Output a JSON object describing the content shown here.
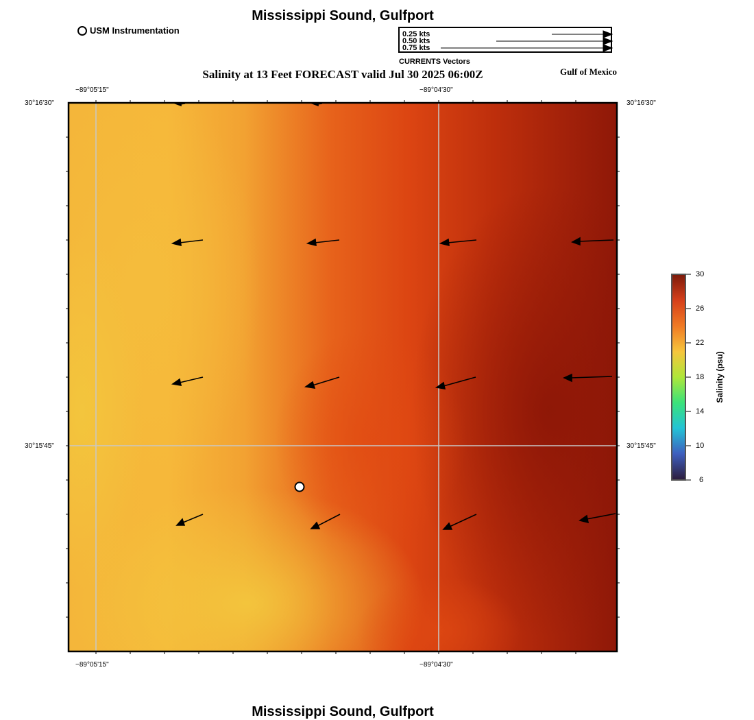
{
  "header": {
    "title": "Mississippi Sound, Gulfport",
    "station_legend": "USM Instrumentation",
    "map_title": "Salinity at 13 Feet FORECAST valid Jul 30 2025 06:00Z",
    "region": "Gulf of Mexico"
  },
  "vector_legend": {
    "rows": [
      "0.25 kts",
      "0.50 kts",
      "0.75 kts"
    ],
    "speeds_kts": [
      0.25,
      0.5,
      0.75
    ],
    "caption": "CURRENTS Vectors"
  },
  "axes": {
    "lon_labels": [
      "−89°05'15\"",
      "−89°04'30\""
    ],
    "lat_labels": [
      "30°16'30\"",
      "30°15'45\""
    ]
  },
  "colorbar": {
    "label": "Salinity (psu)",
    "ticks": [
      "30",
      "26",
      "22",
      "18",
      "14",
      "10",
      "6"
    ],
    "min": 6,
    "max": 30,
    "stops": [
      "#2d1e3e",
      "#3e5fbf",
      "#23c3d6",
      "#3be27a",
      "#aee63a",
      "#f6c53c",
      "#f07a24",
      "#d6401b",
      "#7e1a0a"
    ]
  },
  "footer": {
    "title": "Mississippi Sound, Gulfport"
  },
  "colors": {
    "field_low": "#f4b63a",
    "field_mid": "#e04e14",
    "field_high": "#8f1808",
    "grid": "#c8c8c8",
    "arrow": "#000000"
  }
}
